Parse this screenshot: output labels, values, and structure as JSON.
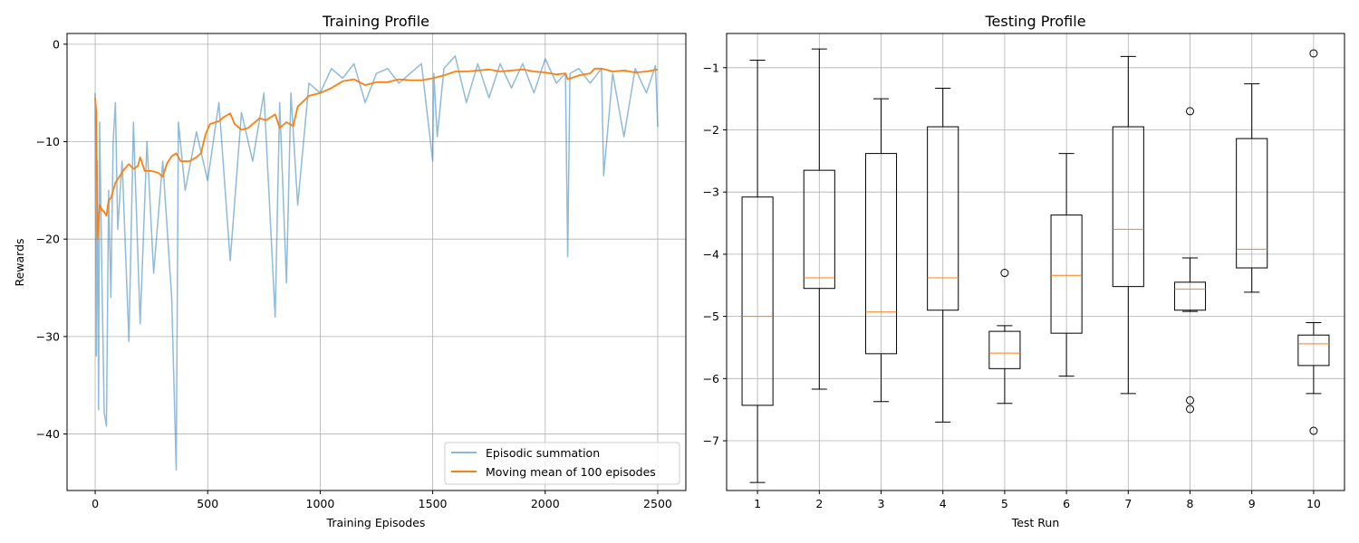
{
  "colors": {
    "episodic": "#1f77b4",
    "moving_mean": "#ff7f0e",
    "box": "#000000",
    "median": "#ff7f0e",
    "grid": "#b0b0b0"
  },
  "chart_data": [
    {
      "type": "line",
      "title": "Training Profile",
      "xlabel": "Training Episodes",
      "ylabel": "Rewards",
      "xlim": [
        -125,
        2625
      ],
      "ylim": [
        -45.8,
        1.1
      ],
      "xticks": [
        0,
        500,
        1000,
        1500,
        2000,
        2500
      ],
      "yticks": [
        0,
        -10,
        -20,
        -30,
        -40
      ],
      "grid": true,
      "legend_position": "lower-right",
      "series": [
        {
          "name": "Episodic summation",
          "alpha": 0.5,
          "x": [
            0,
            5,
            10,
            15,
            20,
            30,
            40,
            50,
            60,
            70,
            80,
            90,
            100,
            120,
            150,
            170,
            200,
            230,
            260,
            300,
            340,
            360,
            370,
            400,
            450,
            500,
            550,
            600,
            650,
            700,
            750,
            800,
            820,
            850,
            870,
            900,
            950,
            1000,
            1050,
            1100,
            1150,
            1200,
            1250,
            1300,
            1350,
            1400,
            1450,
            1500,
            1505,
            1520,
            1550,
            1600,
            1650,
            1700,
            1750,
            1800,
            1850,
            1900,
            1950,
            2000,
            2050,
            2090,
            2100,
            2110,
            2150,
            2200,
            2250,
            2260,
            2300,
            2350,
            2400,
            2450,
            2490,
            2500
          ],
          "values": [
            -5,
            -32,
            -12,
            -37.5,
            -8,
            -24,
            -37.8,
            -39.2,
            -15,
            -26,
            -10,
            -6,
            -19,
            -12,
            -30.5,
            -8,
            -28.7,
            -10,
            -23.5,
            -12,
            -26,
            -43.7,
            -8,
            -15,
            -9,
            -14,
            -6,
            -22.2,
            -7,
            -12,
            -5,
            -28,
            -6,
            -24.5,
            -5,
            -16.5,
            -4,
            -5,
            -2.5,
            -3.5,
            -2,
            -6,
            -3,
            -2.5,
            -4,
            -3,
            -2,
            -12,
            -3,
            -9.5,
            -2.5,
            -1.2,
            -6,
            -2,
            -5.5,
            -2,
            -4.5,
            -2,
            -5,
            -1.5,
            -4,
            -3,
            -21.8,
            -3,
            -2.5,
            -4,
            -2.5,
            -13.5,
            -3,
            -9.5,
            -2.5,
            -5,
            -2.2,
            -8.5
          ]
        },
        {
          "name": "Moving mean of 100 episodes",
          "x": [
            0,
            5,
            10,
            20,
            30,
            40,
            50,
            60,
            70,
            90,
            110,
            130,
            150,
            170,
            190,
            200,
            220,
            250,
            280,
            300,
            320,
            340,
            360,
            380,
            420,
            450,
            470,
            490,
            510,
            550,
            570,
            600,
            620,
            650,
            680,
            700,
            730,
            760,
            800,
            820,
            850,
            880,
            900,
            950,
            1000,
            1050,
            1100,
            1150,
            1200,
            1250,
            1300,
            1350,
            1400,
            1450,
            1500,
            1550,
            1600,
            1650,
            1700,
            1750,
            1800,
            1850,
            1900,
            1950,
            2000,
            2050,
            2090,
            2100,
            2150,
            2200,
            2220,
            2250,
            2300,
            2350,
            2400,
            2450,
            2500
          ],
          "values": [
            -5.5,
            -7,
            -20,
            -16.5,
            -17,
            -17.2,
            -17.6,
            -16,
            -15.8,
            -14.2,
            -13.5,
            -12.8,
            -12.3,
            -12.8,
            -12.5,
            -11.6,
            -13,
            -13,
            -13.2,
            -13.6,
            -12.2,
            -11.5,
            -11.2,
            -12,
            -12,
            -11.6,
            -11.2,
            -9.3,
            -8.2,
            -7.9,
            -7.5,
            -7.1,
            -8.2,
            -8.8,
            -8.6,
            -8.2,
            -7.6,
            -7.8,
            -7.2,
            -8.6,
            -8.0,
            -8.4,
            -6.4,
            -5.3,
            -5.0,
            -4.5,
            -3.8,
            -3.6,
            -4.2,
            -3.9,
            -3.9,
            -3.6,
            -3.7,
            -3.7,
            -3.5,
            -3.2,
            -2.8,
            -2.8,
            -2.7,
            -2.6,
            -2.8,
            -2.7,
            -2.6,
            -2.8,
            -2.9,
            -3.1,
            -3.0,
            -3.6,
            -3.2,
            -3.0,
            -2.5,
            -2.5,
            -2.8,
            -2.7,
            -2.9,
            -2.8,
            -2.6
          ]
        }
      ]
    },
    {
      "type": "box",
      "title": "Testing Profile",
      "xlabel": "Test Run",
      "ylabel": "",
      "xlim": [
        0.5,
        10.5
      ],
      "ylim": [
        -7.8,
        -0.45
      ],
      "yticks": [
        -1,
        -2,
        -3,
        -4,
        -5,
        -6,
        -7
      ],
      "grid": true,
      "categories": [
        "1",
        "2",
        "3",
        "4",
        "5",
        "6",
        "7",
        "8",
        "9",
        "10"
      ],
      "boxes": [
        {
          "whislo": -7.67,
          "q1": -6.43,
          "med": -5.0,
          "q3": -3.08,
          "whishi": -0.88,
          "fliers": []
        },
        {
          "whislo": -6.17,
          "q1": -4.55,
          "med": -4.38,
          "q3": -2.65,
          "whishi": -0.7,
          "fliers": []
        },
        {
          "whislo": -6.37,
          "q1": -5.6,
          "med": -4.93,
          "q3": -2.38,
          "whishi": -1.5,
          "fliers": []
        },
        {
          "whislo": -6.7,
          "q1": -4.9,
          "med": -4.38,
          "q3": -1.95,
          "whishi": -1.33,
          "fliers": []
        },
        {
          "whislo": -6.4,
          "q1": -5.84,
          "med": -5.59,
          "q3": -5.24,
          "whishi": -5.15,
          "fliers": [
            -4.3
          ]
        },
        {
          "whislo": -5.96,
          "q1": -5.27,
          "med": -4.34,
          "q3": -3.37,
          "whishi": -2.38,
          "fliers": []
        },
        {
          "whislo": -6.24,
          "q1": -4.52,
          "med": -3.6,
          "q3": -1.95,
          "whishi": -0.82,
          "fliers": []
        },
        {
          "whislo": -4.92,
          "q1": -4.9,
          "med": -4.56,
          "q3": -4.45,
          "whishi": -4.06,
          "fliers": [
            -1.7,
            -6.35,
            -6.49
          ]
        },
        {
          "whislo": -4.61,
          "q1": -4.22,
          "med": -3.92,
          "q3": -2.14,
          "whishi": -1.26,
          "fliers": []
        },
        {
          "whislo": -6.24,
          "q1": -5.79,
          "med": -5.44,
          "q3": -5.3,
          "whishi": -5.1,
          "fliers": [
            -0.77,
            -6.84
          ]
        }
      ]
    }
  ]
}
